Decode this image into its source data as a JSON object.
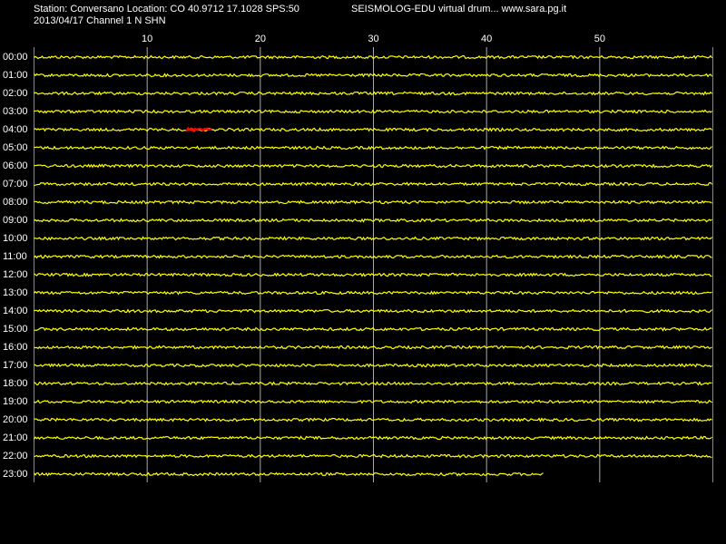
{
  "chart_data": {
    "type": "helicorder",
    "title": "Station: Conversano Location: CO 40.9712 17.1028 SPS:50",
    "subtitle": "2013/04/17  Channel 1 N SHN",
    "annotation": "SEISMOLOG-EDU virtual drum... www.sara.pg.it",
    "categories": [
      "00:00",
      "01:00",
      "02:00",
      "03:00",
      "04:00",
      "05:00",
      "06:00",
      "07:00",
      "08:00",
      "09:00",
      "10:00",
      "11:00",
      "12:00",
      "13:00",
      "14:00",
      "15:00",
      "16:00",
      "17:00",
      "18:00",
      "19:00",
      "20:00",
      "21:00",
      "22:00",
      "23:00"
    ],
    "xlim": [
      0,
      60
    ],
    "xticks": [
      10,
      20,
      30,
      40,
      50
    ],
    "grid": true,
    "color": "#ffff00",
    "last_row_end": 45,
    "events": [
      {
        "row": 4,
        "start": 13.5,
        "end": 15.7,
        "color": "#ff0000"
      }
    ]
  }
}
